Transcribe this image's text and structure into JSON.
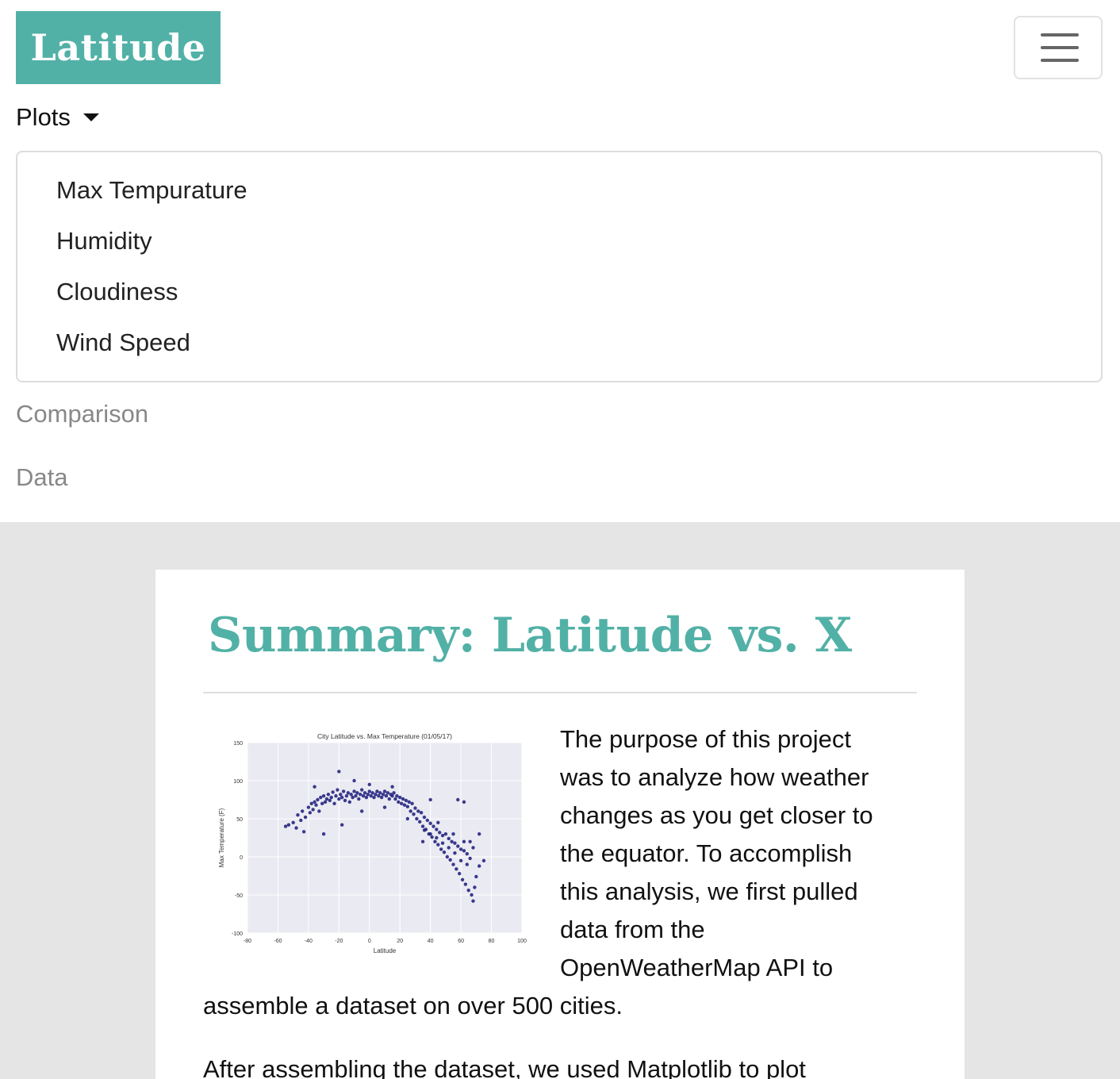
{
  "navbar": {
    "brand": "Latitude",
    "toggler_icon": "hamburger-icon",
    "dropdown_label": "Plots",
    "dropdown_items": [
      "Max Tempurature",
      "Humidity",
      "Cloudiness",
      "Wind Speed"
    ],
    "links": [
      "Comparison",
      "Data"
    ]
  },
  "colors": {
    "brand": "#52b1a6",
    "background": "#e5e5e5",
    "plot_bg": "#eaeaf2",
    "points": "#1a1a7a"
  },
  "main": {
    "title": "Summary: Latitude vs. X",
    "paragraph1_lines": [
      "The purpose of this project",
      "was to analyze how weather",
      "changes as you get closer to",
      "the equator. To accomplish",
      "this analysis, we first pulled",
      "data from the",
      "OpenWeatherMap API to"
    ],
    "paragraph1_tail": "assemble a dataset on over 500 cities.",
    "paragraph2": "After assembling the dataset, we used Matplotlib to plot"
  },
  "chart_data": {
    "type": "scatter",
    "title": "City Latitude vs. Max Temperature (01/05/17)",
    "xlabel": "Latitude",
    "ylabel": "Max Temperature (F)",
    "xlim": [
      -80,
      100
    ],
    "ylim": [
      -100,
      150
    ],
    "xticks": [
      "-80",
      "-60",
      "-40",
      "-20",
      "0",
      "20",
      "40",
      "60",
      "80",
      "100"
    ],
    "yticks": [
      "150",
      "100",
      "50",
      "0",
      "-50",
      "-100"
    ],
    "grid": true,
    "series": [
      {
        "points": [
          [
            -55,
            40
          ],
          [
            -53,
            42
          ],
          [
            -50,
            45
          ],
          [
            -48,
            38
          ],
          [
            -47,
            55
          ],
          [
            -45,
            48
          ],
          [
            -44,
            60
          ],
          [
            -42,
            52
          ],
          [
            -40,
            65
          ],
          [
            -39,
            58
          ],
          [
            -38,
            70
          ],
          [
            -37,
            62
          ],
          [
            -36,
            72
          ],
          [
            -35,
            68
          ],
          [
            -34,
            75
          ],
          [
            -33,
            60
          ],
          [
            -32,
            78
          ],
          [
            -31,
            70
          ],
          [
            -30,
            80
          ],
          [
            -29,
            72
          ],
          [
            -28,
            76
          ],
          [
            -27,
            82
          ],
          [
            -26,
            74
          ],
          [
            -25,
            78
          ],
          [
            -24,
            85
          ],
          [
            -23,
            70
          ],
          [
            -22,
            80
          ],
          [
            -21,
            88
          ],
          [
            -20,
            76
          ],
          [
            -19,
            82
          ],
          [
            -18,
            78
          ],
          [
            -17,
            86
          ],
          [
            -16,
            74
          ],
          [
            -15,
            80
          ],
          [
            -14,
            84
          ],
          [
            -13,
            72
          ],
          [
            -12,
            82
          ],
          [
            -11,
            78
          ],
          [
            -10,
            86
          ],
          [
            -9,
            80
          ],
          [
            -8,
            84
          ],
          [
            -7,
            76
          ],
          [
            -6,
            82
          ],
          [
            -5,
            88
          ],
          [
            -4,
            80
          ],
          [
            -3,
            84
          ],
          [
            -2,
            78
          ],
          [
            -1,
            82
          ],
          [
            0,
            86
          ],
          [
            1,
            80
          ],
          [
            2,
            84
          ],
          [
            3,
            78
          ],
          [
            4,
            82
          ],
          [
            5,
            86
          ],
          [
            6,
            80
          ],
          [
            7,
            84
          ],
          [
            8,
            78
          ],
          [
            9,
            82
          ],
          [
            10,
            86
          ],
          [
            11,
            80
          ],
          [
            12,
            84
          ],
          [
            13,
            76
          ],
          [
            14,
            82
          ],
          [
            15,
            80
          ],
          [
            16,
            84
          ],
          [
            17,
            76
          ],
          [
            18,
            80
          ],
          [
            19,
            72
          ],
          [
            20,
            78
          ],
          [
            21,
            70
          ],
          [
            22,
            76
          ],
          [
            23,
            68
          ],
          [
            24,
            74
          ],
          [
            25,
            66
          ],
          [
            26,
            72
          ],
          [
            27,
            60
          ],
          [
            28,
            70
          ],
          [
            29,
            56
          ],
          [
            30,
            64
          ],
          [
            31,
            50
          ],
          [
            32,
            60
          ],
          [
            33,
            46
          ],
          [
            34,
            58
          ],
          [
            35,
            40
          ],
          [
            36,
            52
          ],
          [
            37,
            36
          ],
          [
            38,
            48
          ],
          [
            39,
            30
          ],
          [
            40,
            44
          ],
          [
            41,
            26
          ],
          [
            42,
            40
          ],
          [
            43,
            20
          ],
          [
            44,
            36
          ],
          [
            45,
            16
          ],
          [
            46,
            32
          ],
          [
            47,
            10
          ],
          [
            48,
            28
          ],
          [
            49,
            6
          ],
          [
            50,
            30
          ],
          [
            51,
            0
          ],
          [
            52,
            24
          ],
          [
            53,
            -4
          ],
          [
            54,
            20
          ],
          [
            55,
            -10
          ],
          [
            56,
            18
          ],
          [
            57,
            -16
          ],
          [
            58,
            14
          ],
          [
            59,
            -22
          ],
          [
            60,
            10
          ],
          [
            61,
            -30
          ],
          [
            62,
            8
          ],
          [
            63,
            -36
          ],
          [
            64,
            4
          ],
          [
            65,
            -44
          ],
          [
            66,
            -2
          ],
          [
            67,
            -50
          ],
          [
            68,
            -58
          ],
          [
            69,
            -40
          ],
          [
            70,
            -26
          ],
          [
            72,
            -12
          ],
          [
            -43,
            33
          ],
          [
            -30,
            30
          ],
          [
            -18,
            42
          ],
          [
            -5,
            60
          ],
          [
            10,
            65
          ],
          [
            25,
            50
          ],
          [
            35,
            20
          ],
          [
            45,
            45
          ],
          [
            55,
            30
          ],
          [
            62,
            20
          ],
          [
            -36,
            92
          ],
          [
            -20,
            112
          ],
          [
            -10,
            100
          ],
          [
            0,
            95
          ],
          [
            15,
            92
          ],
          [
            40,
            75
          ],
          [
            58,
            75
          ],
          [
            62,
            72
          ],
          [
            72,
            30
          ],
          [
            75,
            -5
          ],
          [
            68,
            12
          ],
          [
            66,
            20
          ],
          [
            64,
            -10
          ],
          [
            60,
            -5
          ],
          [
            56,
            5
          ],
          [
            52,
            12
          ],
          [
            48,
            18
          ],
          [
            44,
            25
          ],
          [
            40,
            30
          ],
          [
            36,
            35
          ]
        ]
      }
    ]
  }
}
